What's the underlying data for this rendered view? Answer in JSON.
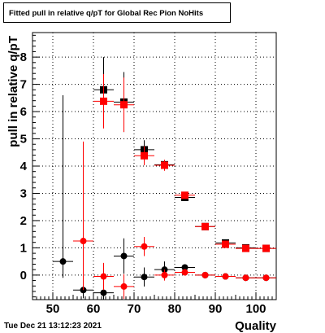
{
  "chart_data": {
    "type": "scatter",
    "title": "Fitted pull in relative q/pT  for Global Rec Pion NoHits",
    "xlabel": "Quality",
    "ylabel": "pull in relative q/pT",
    "xlim": [
      45,
      105
    ],
    "ylim": [
      -0.9,
      8.9
    ],
    "xticks": [
      50,
      60,
      70,
      80,
      90,
      100
    ],
    "yticks": [
      0,
      1,
      2,
      3,
      4,
      5,
      6,
      7,
      8
    ],
    "grid": true,
    "series": [
      {
        "marker": "square",
        "color": "#000000",
        "points": [
          {
            "x": 62.5,
            "y": 6.8,
            "xerr": 2.5,
            "yerr": 1.2
          },
          {
            "x": 67.5,
            "y": 6.35,
            "xerr": 2.5,
            "yerr": 1.1
          },
          {
            "x": 72.5,
            "y": 4.6,
            "xerr": 2.5,
            "yerr": 0.35
          },
          {
            "x": 77.5,
            "y": 4.05,
            "xerr": 2.5,
            "yerr": 0.12
          },
          {
            "x": 82.5,
            "y": 2.85,
            "xerr": 2.5,
            "yerr": 0.06
          },
          {
            "x": 87.5,
            "y": 1.78,
            "xerr": 2.5,
            "yerr": 0.05
          },
          {
            "x": 92.5,
            "y": 1.18,
            "xerr": 2.5,
            "yerr": 0.04
          },
          {
            "x": 97.5,
            "y": 1.0,
            "xerr": 2.5,
            "yerr": 0.03
          },
          {
            "x": 102.5,
            "y": 0.98,
            "xerr": 2.5,
            "yerr": 0.03
          }
        ]
      },
      {
        "marker": "square",
        "color": "#ff0000",
        "points": [
          {
            "x": 62.5,
            "y": 6.38,
            "xerr": 2.5,
            "yerr": 1.0
          },
          {
            "x": 67.5,
            "y": 6.25,
            "xerr": 2.5,
            "yerr": 1.0
          },
          {
            "x": 72.5,
            "y": 4.38,
            "xerr": 2.5,
            "yerr": 0.35
          },
          {
            "x": 77.5,
            "y": 4.03,
            "xerr": 2.5,
            "yerr": 0.2
          },
          {
            "x": 82.5,
            "y": 2.93,
            "xerr": 2.5,
            "yerr": 0.1
          },
          {
            "x": 87.5,
            "y": 1.78,
            "xerr": 2.5,
            "yerr": 0.05
          },
          {
            "x": 92.5,
            "y": 1.13,
            "xerr": 2.5,
            "yerr": 0.05
          },
          {
            "x": 97.5,
            "y": 0.98,
            "xerr": 2.5,
            "yerr": 0.04
          },
          {
            "x": 102.5,
            "y": 0.98,
            "xerr": 2.5,
            "yerr": 0.04
          }
        ]
      },
      {
        "marker": "circle",
        "color": "#000000",
        "points": [
          {
            "x": 52.5,
            "y": 0.5,
            "xerr": 2.5,
            "yerr_low": 0.6,
            "yerr_high": 6.1
          },
          {
            "x": 57.5,
            "y": -0.55,
            "xerr": 2.5,
            "yerr": 0.3
          },
          {
            "x": 62.5,
            "y": -0.65,
            "xerr": 2.5,
            "yerr": 0.3
          },
          {
            "x": 67.5,
            "y": 0.7,
            "xerr": 2.5,
            "yerr": 0.65
          },
          {
            "x": 72.5,
            "y": -0.07,
            "xerr": 2.5,
            "yerr": 0.35
          },
          {
            "x": 77.5,
            "y": 0.2,
            "xerr": 2.5,
            "yerr": 0.3
          },
          {
            "x": 82.5,
            "y": 0.28,
            "xerr": 2.5,
            "yerr": 0.1
          },
          {
            "x": 87.5,
            "y": 0.0,
            "xerr": 2.5,
            "yerr": 0.05
          },
          {
            "x": 92.5,
            "y": -0.05,
            "xerr": 2.5,
            "yerr": 0.04
          },
          {
            "x": 97.5,
            "y": -0.1,
            "xerr": 2.5,
            "yerr": 0.03
          },
          {
            "x": 102.5,
            "y": -0.1,
            "xerr": 2.5,
            "yerr": 0.03
          }
        ]
      },
      {
        "marker": "circle",
        "color": "#ff0000",
        "points": [
          {
            "x": 57.5,
            "y": 1.25,
            "xerr": 2.5,
            "yerr_low": 1.8,
            "yerr_high": 3.65
          },
          {
            "x": 62.5,
            "y": -0.05,
            "xerr": 2.5,
            "yerr": 0.5
          },
          {
            "x": 67.5,
            "y": -0.42,
            "xerr": 2.5,
            "yerr": 0.45
          },
          {
            "x": 72.5,
            "y": 1.05,
            "xerr": 2.5,
            "yerr": 0.35
          },
          {
            "x": 77.5,
            "y": 0.0,
            "xerr": 2.5,
            "yerr": 0.2
          },
          {
            "x": 82.5,
            "y": 0.1,
            "xerr": 2.5,
            "yerr": 0.1
          },
          {
            "x": 87.5,
            "y": 0.0,
            "xerr": 2.5,
            "yerr": 0.05
          },
          {
            "x": 92.5,
            "y": -0.05,
            "xerr": 2.5,
            "yerr": 0.04
          },
          {
            "x": 97.5,
            "y": -0.1,
            "xerr": 2.5,
            "yerr": 0.03
          },
          {
            "x": 102.5,
            "y": -0.1,
            "xerr": 2.5,
            "yerr": 0.03
          }
        ]
      }
    ]
  },
  "footer": {
    "timestamp": "Tue Dec 21 13:12:23 2021"
  }
}
